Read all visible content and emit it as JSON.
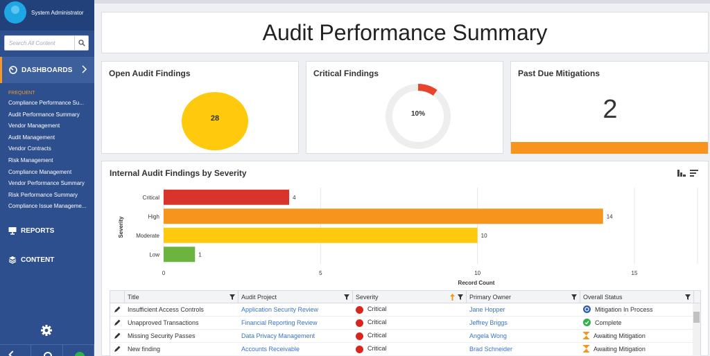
{
  "user": {
    "name": "System Administrator"
  },
  "search": {
    "placeholder": "Search All Content"
  },
  "nav": {
    "dashboards": "DASHBOARDS",
    "frequent_label": "FREQUENT",
    "frequent": [
      "Compliance Performance Su...",
      "Audit Performance Summary",
      "Vendor Management",
      "Audit Management",
      "Vendor Contracts",
      "Risk Management",
      "Compliance Management",
      "Vendor Performance Summary",
      "Risk Performance Summary",
      "Compliance Issue Manageme..."
    ],
    "reports": "REPORTS",
    "content": "CONTENT"
  },
  "page": {
    "title": "Audit Performance Summary"
  },
  "kpis": {
    "open_findings": {
      "title": "Open Audit Findings",
      "value": "28"
    },
    "critical_findings": {
      "title": "Critical Findings",
      "value": "10%",
      "percent": 10
    },
    "past_due": {
      "title": "Past Due Mitigations",
      "value": "2"
    }
  },
  "chart": {
    "title": "Internal Audit Findings by Severity"
  },
  "chart_data": {
    "type": "bar",
    "orientation": "horizontal",
    "categories": [
      "Critical",
      "High",
      "Moderate",
      "Low"
    ],
    "values": [
      4,
      14,
      10,
      1
    ],
    "colors": [
      "#d9342b",
      "#f7941d",
      "#ffc90e",
      "#6db33f"
    ],
    "xlabel": "Record Count",
    "ylabel": "Severity",
    "xticks": [
      "0",
      "5",
      "10",
      "15"
    ],
    "xlim": [
      0,
      15
    ],
    "grid": true,
    "legend": false
  },
  "grid": {
    "headers": [
      "Title",
      "Audit Project",
      "Severity",
      "Primary Owner",
      "Overall Status"
    ],
    "rows": [
      {
        "title": "Insufficient Access Controls",
        "project": "Application Security Review",
        "severity": "Critical",
        "owner": "Jane Hopper",
        "status": "Mitigation In Process",
        "status_icon": "sync-icon"
      },
      {
        "title": "Unapproved Transactions",
        "project": "Financial Reporting Review",
        "severity": "Critical",
        "owner": "Jeffrey Briggs",
        "status": "Complete",
        "status_icon": "check-icon"
      },
      {
        "title": "Missing Security Passes",
        "project": "Data Privacy Management",
        "severity": "Critical",
        "owner": "Angela Wong",
        "status": "Awaiting Mitigation",
        "status_icon": "hourglass-icon"
      },
      {
        "title": "New finding",
        "project": "Accounts Receivable",
        "severity": "Critical",
        "owner": "Brad Schneider",
        "status": "Awaiting Mitigation",
        "status_icon": "hourglass-icon"
      }
    ]
  },
  "colors": {
    "sidebar": "#2d4f8e",
    "accent": "#f7941d",
    "critical": "#d9342b",
    "gold": "#ffc90e"
  }
}
